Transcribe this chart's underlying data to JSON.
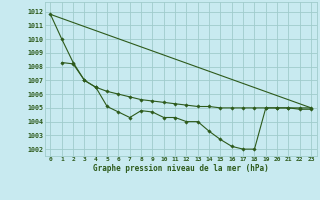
{
  "title": "Graphe pression niveau de la mer (hPa)",
  "background_color": "#c8eaf0",
  "grid_color": "#a0cccc",
  "line_color": "#2d5a1b",
  "xlim": [
    -0.5,
    23.5
  ],
  "ylim": [
    1001.5,
    1012.7
  ],
  "yticks": [
    1002,
    1003,
    1004,
    1005,
    1006,
    1007,
    1008,
    1009,
    1010,
    1011,
    1012
  ],
  "xticks": [
    0,
    1,
    2,
    3,
    4,
    5,
    6,
    7,
    8,
    9,
    10,
    11,
    12,
    13,
    14,
    15,
    16,
    17,
    18,
    19,
    20,
    21,
    22,
    23
  ],
  "line1_x": [
    0,
    1,
    2,
    3,
    4,
    5,
    6,
    7,
    8,
    9,
    10,
    11,
    12,
    13,
    14,
    15,
    16,
    17,
    18,
    19,
    20,
    21,
    22,
    23
  ],
  "line1_y": [
    1011.8,
    1010.0,
    1008.3,
    1007.0,
    1006.5,
    1005.1,
    1004.7,
    1004.3,
    1004.8,
    1004.7,
    1004.3,
    1004.3,
    1004.0,
    1004.0,
    1003.3,
    1002.7,
    1002.2,
    1002.0,
    1002.0,
    1005.0,
    1005.0,
    1005.0,
    1004.9,
    1004.9
  ],
  "line2_x": [
    1,
    2,
    3,
    4,
    5,
    6,
    7,
    8,
    9,
    10,
    11,
    12,
    13,
    14,
    15,
    16,
    17,
    18,
    19,
    20,
    21,
    22,
    23
  ],
  "line2_y": [
    1008.3,
    1008.2,
    1007.0,
    1006.5,
    1006.2,
    1006.0,
    1005.8,
    1005.6,
    1005.5,
    1005.4,
    1005.3,
    1005.2,
    1005.1,
    1005.1,
    1005.0,
    1005.0,
    1005.0,
    1005.0,
    1005.0,
    1005.0,
    1005.0,
    1005.0,
    1005.0
  ],
  "line3_x": [
    0,
    23
  ],
  "line3_y": [
    1011.8,
    1005.0
  ]
}
